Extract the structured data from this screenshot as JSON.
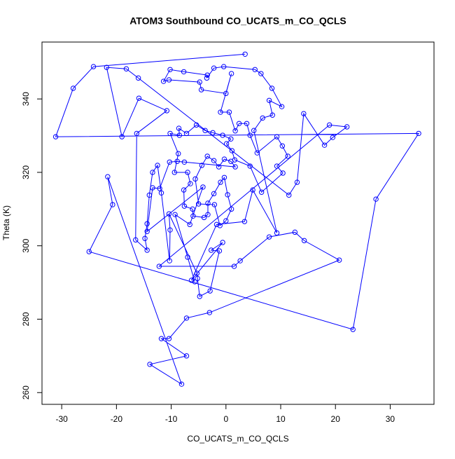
{
  "chart_data": {
    "type": "line",
    "marker": "circle",
    "title": "ATOM3 Southbound CO_UCATS_m_CO_QCLS",
    "x_label": "CO_UCATS_m_CO_QCLS",
    "y_label": "Theta (K)",
    "xlim": [
      -33.6,
      38.0
    ],
    "ylim": [
      256.8,
      355.5
    ],
    "xticks": [
      -30,
      -20,
      -10,
      0,
      10,
      20,
      30
    ],
    "yticks": [
      260,
      280,
      300,
      320,
      340
    ],
    "grid": false,
    "x": [
      3.5,
      -24.2,
      -27.9,
      -31.1,
      35.2,
      27.4,
      23.2,
      -25,
      -20.7,
      -21.6,
      -8.1,
      -13.9,
      -7.2,
      -11.8,
      -10.4,
      -7.2,
      -3,
      20.7,
      14.3,
      12.6,
      7.9,
      2.6,
      1.5,
      -12.2,
      18.9,
      22.1,
      19.5,
      18,
      14.2,
      13,
      11.5,
      -16,
      -18.2,
      -21.8,
      -19,
      -15.9,
      -10.8,
      -16.3,
      -16.5,
      -14.4,
      -14.8,
      -14.4,
      -14,
      -13.4,
      -12.5,
      -11.8,
      -10.3,
      -10.2,
      -10.4,
      -5.3,
      -5.2,
      -4.8,
      -2.9,
      -1.2,
      -2.7,
      -0.6,
      -6.3,
      -1.7,
      3.4,
      4.9,
      9.3,
      5.1,
      6.7,
      8.5,
      7.9,
      10.2,
      8.4,
      6.4,
      5.3,
      -0.4,
      -2.2,
      -3.5,
      -3.4,
      -7.7,
      -10.2,
      -11.4,
      -10.4,
      -4.8,
      -4.5,
      0,
      1,
      -1,
      0.6,
      1.7,
      2.4,
      3.8,
      4.4,
      5.7,
      9.3,
      10.3,
      11.3,
      9.3,
      10.4,
      6.5,
      4.4,
      1.6,
      1.1,
      0.1,
      0.9,
      -0.6,
      -2.4,
      -3.8,
      -5.4,
      -7.2,
      -8.6,
      -8.5,
      -10.2,
      -8.7,
      -9.4,
      -7,
      -6.5,
      -7.7,
      -7.6,
      -6.1,
      -6,
      -4,
      -3.3,
      -3.3,
      -2.2,
      -1,
      -0.3,
      0.3,
      1,
      0,
      -1.1,
      -2.1,
      -5,
      -5.6,
      -4.4,
      -3.4,
      -2.2,
      -1.3,
      -0.3,
      0.9,
      1.7,
      -7.6,
      -8.9,
      -10.3,
      -12.1,
      -13.4,
      -14.4,
      -4.2,
      -6.6,
      -9.3,
      -7,
      -5.7
    ],
    "series": [
      {
        "color": "#0000ff",
        "values": [
          352.2,
          348.8,
          342.9,
          329.7,
          330.6,
          312.7,
          277.2,
          298.4,
          311.2,
          318.8,
          262.3,
          267.7,
          270.0,
          274.7,
          274.7,
          280.3,
          281.8,
          296.1,
          301.4,
          303.7,
          302.4,
          295.9,
          294.4,
          294.4,
          332.9,
          332.4,
          329.5,
          327.4,
          336.0,
          317.3,
          313.8,
          345.7,
          348.2,
          348.6,
          329.7,
          340.2,
          336.8,
          330.6,
          301.6,
          298.8,
          302.0,
          306.0,
          313.8,
          320.0,
          321.9,
          314.4,
          295.9,
          304.3,
          308.7,
          292.5,
          291.1,
          286.2,
          287.7,
          298.6,
          298.8,
          300.9,
          290.6,
          305.8,
          306.6,
          315.2,
          303.5,
          331.4,
          334.8,
          335.6,
          339.6,
          337.9,
          342.9,
          346.9,
          348.0,
          348.8,
          348.4,
          345.7,
          346.5,
          347.4,
          348.0,
          344.8,
          345.2,
          344.6,
          342.5,
          341.5,
          346.9,
          336.4,
          336.4,
          331.3,
          333.3,
          333.3,
          330.1,
          325.3,
          329.7,
          327.2,
          324.4,
          321.7,
          319.8,
          314.6,
          321.7,
          323.4,
          325.9,
          327.8,
          329.1,
          330.1,
          330.8,
          331.4,
          332.9,
          330.6,
          332.0,
          330.1,
          330.6,
          325.1,
          320.0,
          320.0,
          316.9,
          315.2,
          310.8,
          310.0,
          308.1,
          307.7,
          308.5,
          311.6,
          314.2,
          317.3,
          318.6,
          313.9,
          310.0,
          306.8,
          305.5,
          311.2,
          311.4,
          318.2,
          321.9,
          324.4,
          323.2,
          321.5,
          323.6,
          323.0,
          321.5,
          322.8,
          323.0,
          322.8,
          315.6,
          315.8,
          303.9,
          316.0,
          305.8,
          308.5,
          296.9,
          290.2
        ]
      }
    ]
  }
}
